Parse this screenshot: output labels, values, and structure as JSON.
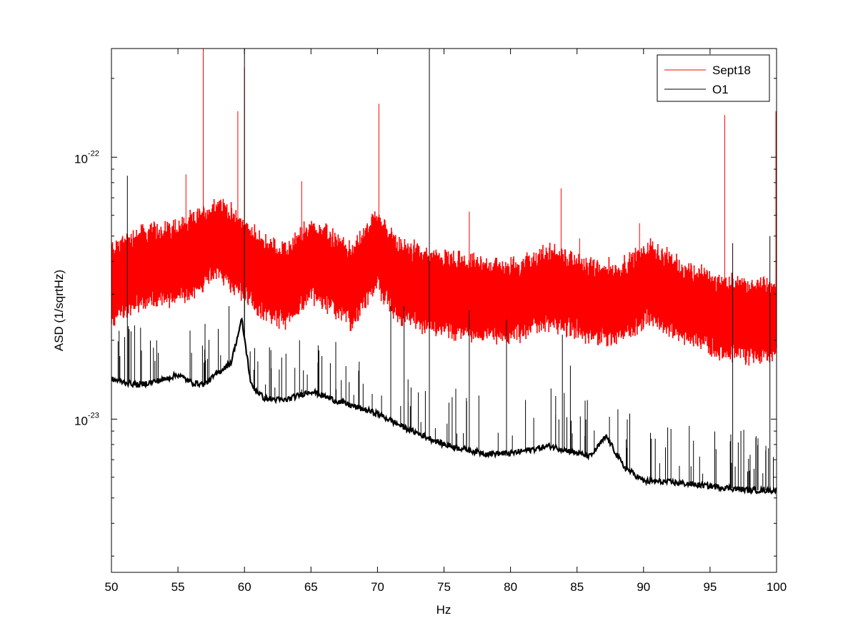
{
  "chart_data": {
    "type": "line",
    "title": "",
    "xlabel": "Hz",
    "ylabel": "ASD (1/sqrtHz)",
    "xlim": [
      50,
      100
    ],
    "ylim": [
      2.6e-24,
      2.6e-22
    ],
    "yscale": "log",
    "grid": false,
    "legend_position": "top-right",
    "x_ticks": [
      50,
      55,
      60,
      65,
      70,
      75,
      80,
      85,
      90,
      95,
      100
    ],
    "x_tick_labels": [
      "50",
      "55",
      "60",
      "65",
      "70",
      "75",
      "80",
      "85",
      "90",
      "95",
      "100"
    ],
    "y_ticks": [
      1e-23,
      1e-22
    ],
    "y_tick_labels": [
      {
        "base": "10",
        "exp": "-23"
      },
      {
        "base": "10",
        "exp": "-22"
      }
    ],
    "series": [
      {
        "name": "Sept18",
        "color": "#ff0000",
        "style": "noisy-band",
        "baseline": [
          [
            50,
            3.3e-23
          ],
          [
            52,
            3.8e-23
          ],
          [
            54,
            3.9e-23
          ],
          [
            56,
            4.2e-23
          ],
          [
            58,
            4.9e-23
          ],
          [
            59.5,
            4.3e-23
          ],
          [
            61,
            3.6e-23
          ],
          [
            63,
            3.2e-23
          ],
          [
            65,
            4.1e-23
          ],
          [
            66.5,
            3.7e-23
          ],
          [
            68,
            3.2e-23
          ],
          [
            70,
            4.4e-23
          ],
          [
            71.5,
            3.4e-23
          ],
          [
            74,
            3.1e-23
          ],
          [
            77,
            2.9e-23
          ],
          [
            80,
            2.8e-23
          ],
          [
            83,
            3.2e-23
          ],
          [
            86,
            2.85e-23
          ],
          [
            88,
            2.75e-23
          ],
          [
            90.5,
            3.35e-23
          ],
          [
            92.5,
            2.85e-23
          ],
          [
            96,
            2.45e-23
          ],
          [
            100,
            2.35e-23
          ]
        ],
        "band_halfwidth_ratio": 1.35,
        "peaks": [
          [
            50.3,
            3.4e-23
          ],
          [
            56.9,
            2.6e-22
          ],
          [
            55.6,
            8.6e-23
          ],
          [
            59.5,
            1.5e-22
          ],
          [
            60,
            2.2e-22
          ],
          [
            64.3,
            8.1e-23
          ],
          [
            70.1,
            1.6e-22
          ],
          [
            73.9,
            2.6e-22
          ],
          [
            76.9,
            6.2e-23
          ],
          [
            83.8,
            7.6e-23
          ],
          [
            85.2,
            4.9e-23
          ],
          [
            89.7,
            5.6e-23
          ],
          [
            96.1,
            1.45e-22
          ],
          [
            99.95,
            1.5e-22
          ]
        ]
      },
      {
        "name": "O1",
        "color": "#000000",
        "style": "line",
        "baseline": [
          [
            50,
            1.42e-23
          ],
          [
            52,
            1.35e-23
          ],
          [
            54,
            1.42e-23
          ],
          [
            55,
            1.48e-23
          ],
          [
            56,
            1.38e-23
          ],
          [
            57,
            1.36e-23
          ],
          [
            58,
            1.5e-23
          ],
          [
            59,
            1.65e-23
          ],
          [
            59.8,
            2.4e-23
          ],
          [
            60.5,
            1.35e-23
          ],
          [
            61.5,
            1.2e-23
          ],
          [
            63,
            1.18e-23
          ],
          [
            65,
            1.28e-23
          ],
          [
            67,
            1.17e-23
          ],
          [
            70,
            1.05e-23
          ],
          [
            72,
            9.3e-24
          ],
          [
            75,
            8e-24
          ],
          [
            78,
            7.4e-24
          ],
          [
            80,
            7.4e-24
          ],
          [
            83,
            7.9e-24
          ],
          [
            86,
            7.2e-24
          ],
          [
            87.2,
            8.6e-24
          ],
          [
            88.5,
            6.6e-24
          ],
          [
            90,
            5.8e-24
          ],
          [
            92,
            5.75e-24
          ],
          [
            95,
            5.55e-24
          ],
          [
            98,
            5.35e-24
          ],
          [
            100,
            5.35e-24
          ]
        ],
        "peaks": [
          [
            51.2,
            8.5e-23
          ],
          [
            60,
            2.6e-22
          ],
          [
            64.3,
            1.3e-23
          ],
          [
            71,
            2.7e-23
          ],
          [
            72,
            2.7e-23
          ],
          [
            73.9,
            2.6e-22
          ],
          [
            76.9,
            2.6e-23
          ],
          [
            79.7,
            2.4e-23
          ],
          [
            83.9,
            2.1e-23
          ],
          [
            84.5,
            1.6e-23
          ],
          [
            96.7,
            4.7e-23
          ],
          [
            99.5,
            5e-23
          ]
        ]
      }
    ]
  }
}
